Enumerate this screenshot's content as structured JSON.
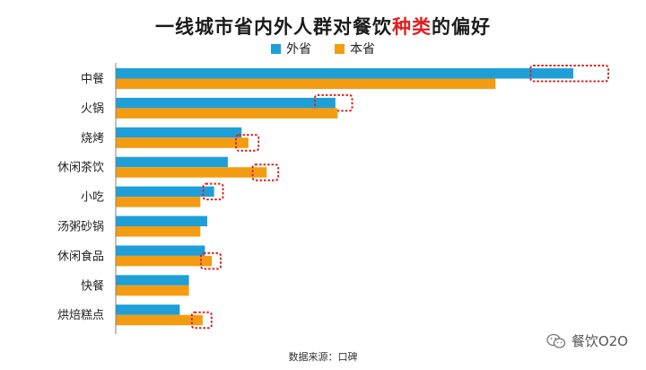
{
  "title_parts": [
    "一线城市省内外人群对餐饮",
    "种类",
    "的偏好"
  ],
  "source": "数据来源：口碑",
  "watermark": "餐饮O2O",
  "colors": {
    "series_out": "#1f9fd8",
    "series_in": "#f39c12",
    "highlight_box": "#e02020",
    "axis": "#7f7f7f"
  },
  "chart_data": {
    "type": "bar",
    "orientation": "horizontal",
    "title": "一线城市省内外人群对餐饮种类的偏好",
    "categories": [
      "中餐",
      "火锅",
      "烧烤",
      "休闲茶饮",
      "小吃",
      "汤粥砂锅",
      "休闲食品",
      "快餐",
      "烘焙糕点"
    ],
    "series": [
      {
        "name": "外省",
        "values": [
          100,
          48,
          27.5,
          24.5,
          21.5,
          20,
          19.5,
          16,
          14
        ]
      },
      {
        "name": "本省",
        "values": [
          83,
          48.5,
          29,
          33,
          18.5,
          18.5,
          21,
          16,
          19
        ]
      }
    ],
    "xlim": [
      0,
      100
    ],
    "grid": false,
    "legend_position": "top-center",
    "highlighted": [
      {
        "category": "中餐",
        "series": "外省"
      },
      {
        "category": "火锅",
        "series": "外省"
      },
      {
        "category": "烧烤",
        "series": "本省"
      },
      {
        "category": "休闲茶饮",
        "series": "本省"
      },
      {
        "category": "小吃",
        "series": "外省"
      },
      {
        "category": "休闲食品",
        "series": "本省"
      },
      {
        "category": "烘焙糕点",
        "series": "本省"
      }
    ]
  }
}
